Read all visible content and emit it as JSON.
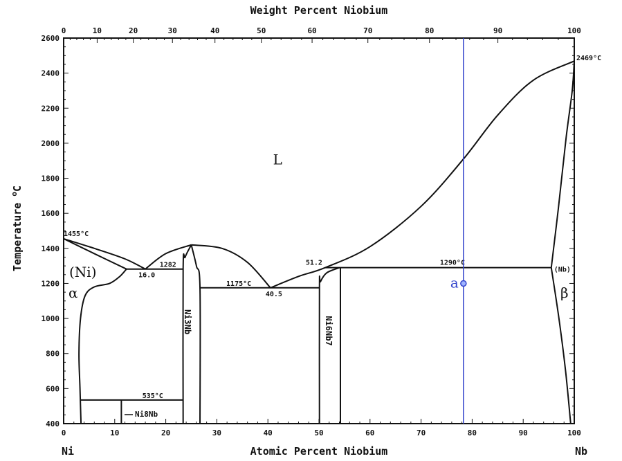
{
  "chart_data": {
    "type": "line",
    "title": "",
    "xlabel": "Atomic Percent Niobium",
    "x2label": "Weight Percent Niobium",
    "ylabel": "Temperature",
    "ylabel_unit": "C",
    "ylabel_unit_sup": "o",
    "xlim": [
      0,
      100
    ],
    "ylim": [
      400,
      2600
    ],
    "x_ticks": [
      0,
      10,
      20,
      30,
      40,
      50,
      60,
      70,
      80,
      90,
      100
    ],
    "x2_ticks": [
      0,
      10,
      20,
      30,
      40,
      50,
      60,
      70,
      80,
      90,
      100
    ],
    "y_ticks": [
      400,
      600,
      800,
      1000,
      1200,
      1400,
      1600,
      1800,
      2000,
      2200,
      2400,
      2600
    ],
    "grid": false,
    "end_labels": {
      "left": "Ni",
      "right": "Nb"
    },
    "line_color": "#111111",
    "highlight_color": "#3344cc",
    "phase_lines": [
      {
        "name": "liquidus-ni",
        "points": [
          [
            0,
            1455
          ],
          [
            6,
            1400
          ],
          [
            12,
            1340
          ],
          [
            16,
            1282
          ]
        ]
      },
      {
        "name": "solidus-ni",
        "points": [
          [
            0,
            1455
          ],
          [
            6,
            1370
          ],
          [
            12.3,
            1282
          ]
        ]
      },
      {
        "name": "solvus-ni",
        "points": [
          [
            12.3,
            1282
          ],
          [
            11,
            1240
          ],
          [
            9,
            1200
          ],
          [
            6,
            1180
          ],
          [
            4.2,
            1130
          ],
          [
            3.3,
            1000
          ],
          [
            3.0,
            800
          ],
          [
            3.2,
            600
          ],
          [
            3.4,
            400
          ]
        ]
      },
      {
        "name": "eutectic-1282",
        "points": [
          [
            12.3,
            1282
          ],
          [
            23.4,
            1282
          ]
        ]
      },
      {
        "name": "liquidus-ni3nb-left",
        "points": [
          [
            16,
            1282
          ],
          [
            20,
            1370
          ],
          [
            25,
            1420
          ]
        ]
      },
      {
        "name": "liquidus-ni3nb-right",
        "points": [
          [
            25,
            1420
          ],
          [
            31,
            1400
          ],
          [
            36,
            1320
          ],
          [
            40.5,
            1175
          ]
        ]
      },
      {
        "name": "ni3nb-left",
        "points": [
          [
            25,
            1420
          ],
          [
            23.8,
            1350
          ],
          [
            23.4,
            1282
          ],
          [
            23.4,
            400
          ]
        ]
      },
      {
        "name": "ni3nb-right",
        "points": [
          [
            25,
            1420
          ],
          [
            26.0,
            1300
          ],
          [
            26.7,
            1175
          ],
          [
            26.7,
            400
          ]
        ]
      },
      {
        "name": "eutectic-1175",
        "points": [
          [
            26.7,
            1175
          ],
          [
            50.1,
            1175
          ]
        ]
      },
      {
        "name": "ni6nb7-left",
        "points": [
          [
            54,
            1290
          ],
          [
            51.5,
            1260
          ],
          [
            50.3,
            1210
          ],
          [
            50.1,
            1175
          ],
          [
            50.1,
            400
          ]
        ]
      },
      {
        "name": "ni6nb7-right",
        "points": [
          [
            54.2,
            1290
          ],
          [
            54.2,
            400
          ]
        ]
      },
      {
        "name": "liquidus-nb",
        "points": [
          [
            40.5,
            1175
          ],
          [
            46,
            1240
          ],
          [
            51.2,
            1290
          ],
          [
            60,
            1410
          ],
          [
            70,
            1640
          ],
          [
            78.3,
            1910
          ],
          [
            85,
            2160
          ],
          [
            92,
            2360
          ],
          [
            100,
            2469
          ]
        ]
      },
      {
        "name": "peritectic-1290",
        "points": [
          [
            51.2,
            1290
          ],
          [
            95.5,
            1290
          ]
        ]
      },
      {
        "name": "solidus-nb",
        "points": [
          [
            95.5,
            1290
          ],
          [
            96.9,
            1632
          ],
          [
            98.4,
            2030
          ],
          [
            99.6,
            2300
          ],
          [
            100,
            2469
          ]
        ]
      },
      {
        "name": "solvus-nb",
        "points": [
          [
            95.5,
            1290
          ],
          [
            97,
            1000
          ],
          [
            98.3,
            700
          ],
          [
            99.3,
            400
          ]
        ]
      },
      {
        "name": "ni8nb-line-535",
        "points": [
          [
            3.2,
            535
          ],
          [
            23.4,
            535
          ]
        ]
      },
      {
        "name": "ni8nb",
        "points": [
          [
            11.3,
            535
          ],
          [
            11.3,
            400
          ]
        ]
      }
    ],
    "annotations": [
      {
        "text": "1455°C",
        "at": [
          0,
          1455
        ]
      },
      {
        "text": "16.0",
        "at": [
          16,
          1282
        ]
      },
      {
        "text": "1282",
        "at": [
          23.4,
          1282
        ]
      },
      {
        "text": "1175°C",
        "at": [
          26.7,
          1175
        ]
      },
      {
        "text": "40.5",
        "at": [
          40.5,
          1175
        ]
      },
      {
        "text": "51.2",
        "at": [
          51.2,
          1290
        ]
      },
      {
        "text": "1290°C",
        "at": [
          78.3,
          1290
        ]
      },
      {
        "text": "2469°C",
        "at": [
          100,
          2469
        ]
      },
      {
        "text": "535°C",
        "at": [
          15,
          535
        ]
      },
      {
        "text": "(Nb)",
        "at": [
          95.5,
          1290
        ]
      }
    ],
    "phase_labels": {
      "liquid": "L",
      "ni": "(Ni)",
      "alpha": "α",
      "beta": "β",
      "ni3nb": "Ni3Nb",
      "ni6nb7": "Ni6Nb7",
      "ni8nb": "Ni8Nb"
    },
    "marker": {
      "label": "a",
      "x": 78.3,
      "y": 1200
    }
  }
}
